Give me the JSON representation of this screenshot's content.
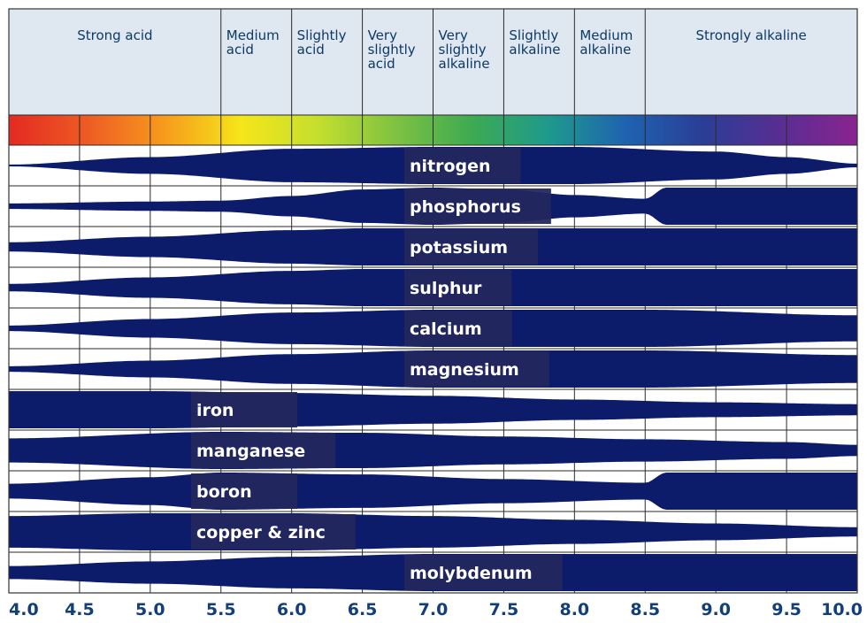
{
  "chart_data": {
    "type": "area",
    "title": "",
    "xlabel": "",
    "ylabel": "",
    "x_range": [
      4.0,
      10.0
    ],
    "x_ticks": [
      "4.0",
      "4.5",
      "5.0",
      "5.5",
      "6.0",
      "6.5",
      "7.0",
      "7.5",
      "8.0",
      "8.5",
      "9.0",
      "9.5",
      "10.0"
    ],
    "categories": [
      {
        "label": "Strong acid",
        "from": 4.0,
        "to": 5.5
      },
      {
        "label": "Medium acid",
        "from": 5.5,
        "to": 6.0
      },
      {
        "label": "Slightly acid",
        "from": 6.0,
        "to": 6.5
      },
      {
        "label": "Very slightly acid",
        "from": 6.5,
        "to": 7.0
      },
      {
        "label": "Very slightly alkaline",
        "from": 7.0,
        "to": 7.5
      },
      {
        "label": "Slightly alkaline",
        "from": 7.5,
        "to": 8.0
      },
      {
        "label": "Medium alkaline",
        "from": 8.0,
        "to": 8.5
      },
      {
        "label": "Strongly alkaline",
        "from": 8.5,
        "to": 10.0
      }
    ],
    "ph_colors": [
      "#e32a22",
      "#ee5a24",
      "#f79a1c",
      "#f6e51a",
      "#c5df2e",
      "#7fc241",
      "#3eaa52",
      "#1e9a8c",
      "#1f63b0",
      "#2a3e96",
      "#582e92",
      "#8a2490"
    ],
    "band_color": "#0d1b6b",
    "series": [
      {
        "name": "nitrogen",
        "x": [
          4.0,
          5.0,
          6.0,
          7.0,
          8.0,
          9.0,
          9.5,
          10.0
        ],
        "availability": [
          0.05,
          0.45,
          0.9,
          1.0,
          1.0,
          0.75,
          0.45,
          0.1
        ]
      },
      {
        "name": "phosphorus",
        "x": [
          4.0,
          5.0,
          5.5,
          6.0,
          6.5,
          7.0,
          7.5,
          8.0,
          8.5,
          8.65,
          9.0,
          10.0
        ],
        "availability": [
          0.15,
          0.25,
          0.3,
          0.55,
          0.9,
          1.0,
          0.9,
          0.6,
          0.4,
          1.0,
          1.0,
          1.0
        ]
      },
      {
        "name": "potassium",
        "x": [
          4.0,
          5.0,
          6.0,
          6.5,
          10.0
        ],
        "availability": [
          0.25,
          0.55,
          0.9,
          1.0,
          1.0
        ]
      },
      {
        "name": "sulphur",
        "x": [
          4.0,
          5.0,
          6.0,
          6.5,
          10.0
        ],
        "availability": [
          0.2,
          0.55,
          0.9,
          1.0,
          1.0
        ]
      },
      {
        "name": "calcium",
        "x": [
          4.0,
          5.0,
          6.0,
          7.0,
          8.5,
          10.0
        ],
        "availability": [
          0.15,
          0.5,
          0.85,
          1.0,
          1.0,
          0.7
        ]
      },
      {
        "name": "magnesium",
        "x": [
          4.0,
          5.0,
          6.0,
          7.0,
          8.5,
          10.0
        ],
        "availability": [
          0.15,
          0.45,
          0.8,
          1.0,
          1.0,
          0.75
        ]
      },
      {
        "name": "iron",
        "x": [
          4.0,
          5.0,
          6.0,
          7.0,
          8.0,
          9.0,
          10.0
        ],
        "availability": [
          1.0,
          1.0,
          0.9,
          0.75,
          0.55,
          0.4,
          0.3
        ]
      },
      {
        "name": "manganese",
        "x": [
          4.0,
          5.5,
          6.5,
          7.5,
          8.5,
          9.5,
          10.0
        ],
        "availability": [
          0.65,
          1.0,
          0.95,
          0.75,
          0.6,
          0.45,
          0.3
        ]
      },
      {
        "name": "boron",
        "x": [
          4.0,
          5.0,
          5.5,
          6.5,
          7.5,
          8.5,
          8.65,
          10.0
        ],
        "availability": [
          0.4,
          0.75,
          1.0,
          0.9,
          0.65,
          0.45,
          1.0,
          1.0
        ]
      },
      {
        "name": "copper & zinc",
        "x": [
          4.0,
          5.0,
          6.0,
          7.0,
          8.0,
          9.0,
          10.0
        ],
        "availability": [
          0.85,
          1.0,
          1.0,
          0.85,
          0.65,
          0.45,
          0.25
        ]
      },
      {
        "name": "molybdenum",
        "x": [
          4.0,
          5.0,
          6.0,
          7.0,
          8.0,
          10.0
        ],
        "availability": [
          0.35,
          0.6,
          0.85,
          1.0,
          1.0,
          1.0
        ]
      }
    ]
  }
}
